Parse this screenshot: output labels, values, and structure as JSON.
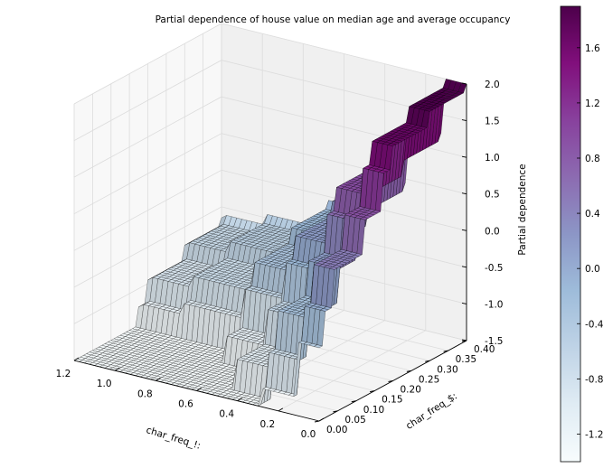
{
  "chart_data": {
    "type": "surface3d",
    "title": "Partial dependence of house value on median age and average occupancy",
    "xlabel": "char_freq_!:",
    "ylabel": "char_freq_$:",
    "zlabel": "Partial dependence",
    "x_ticks": [
      "0.0",
      "0.2",
      "0.4",
      "0.6",
      "0.8",
      "1.0",
      "1.2"
    ],
    "y_ticks": [
      "0.00",
      "0.05",
      "0.10",
      "0.15",
      "0.20",
      "0.25",
      "0.30",
      "0.35",
      "0.40"
    ],
    "z_ticks": [
      "-1.5",
      "-1.0",
      "-0.5",
      "0.0",
      "0.5",
      "1.0",
      "1.5",
      "2.0"
    ],
    "xlim": [
      0,
      1.2
    ],
    "ylim": [
      0,
      0.4
    ],
    "zlim": [
      -1.5,
      2.0
    ],
    "colormap": "BuPu",
    "colorbar": {
      "ticks": [
        "-1.2",
        "-0.8",
        "-0.4",
        "0.0",
        "0.4",
        "0.8",
        "1.2",
        "1.6"
      ],
      "range": [
        -1.4,
        1.9
      ],
      "colors": [
        "#f7fcfd",
        "#e0ecf4",
        "#bfd3e6",
        "#9ebcda",
        "#8c96c6",
        "#8c6bb1",
        "#88419d",
        "#810f7c",
        "#4d004b"
      ]
    },
    "surface": {
      "x_range": [
        0,
        1.2
      ],
      "y_range": [
        0,
        0.4
      ],
      "x_levels": [
        [
          0.0,
          1.9
        ],
        [
          0.12,
          1.15
        ],
        [
          0.3,
          0.35
        ],
        [
          0.5,
          -0.15
        ],
        [
          0.7,
          -0.55
        ],
        [
          1.0,
          -0.7
        ],
        [
          1.2,
          -0.75
        ]
      ],
      "y_levels": [
        [
          0.0,
          -0.5
        ],
        [
          0.015,
          -0.05
        ],
        [
          0.035,
          0.45
        ],
        [
          0.12,
          0.9
        ],
        [
          0.17,
          1.4
        ],
        [
          0.2,
          1.7
        ],
        [
          0.3,
          1.9
        ],
        [
          0.4,
          2.0
        ]
      ]
    }
  }
}
